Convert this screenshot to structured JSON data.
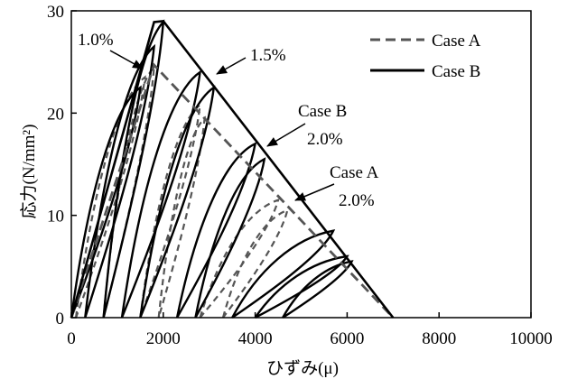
{
  "chart_data": {
    "type": "line",
    "title": "",
    "xlabel": "ひずみ(μ)",
    "ylabel": "応力(N/mm²)",
    "xlim": [
      0,
      10000
    ],
    "ylim": [
      0,
      30
    ],
    "xticks": [
      0,
      2000,
      4000,
      6000,
      8000,
      10000
    ],
    "yticks": [
      0,
      10,
      20,
      30
    ],
    "grid": false,
    "legend": {
      "position": "top-right",
      "entries": [
        "Case A",
        "Case B"
      ]
    },
    "colors": {
      "case_a": "#555555",
      "case_b": "#000000"
    },
    "series": [
      {
        "name": "Case A",
        "style": "dashed",
        "x": [
          0,
          1800,
          7000
        ],
        "y": [
          0,
          24.7,
          0
        ],
        "loops": [
          {
            "start_x": 100,
            "end_x": 1600,
            "peak_y": 23.5
          },
          {
            "start_x": 700,
            "end_x": 1800,
            "peak_y": 24.5
          },
          {
            "start_x": 1500,
            "end_x": 2800,
            "peak_y": 20.8
          },
          {
            "start_x": 1900,
            "end_x": 2900,
            "peak_y": 19.5
          },
          {
            "start_x": 2800,
            "end_x": 4500,
            "peak_y": 11.5
          },
          {
            "start_x": 3300,
            "end_x": 4700,
            "peak_y": 10.5
          }
        ]
      },
      {
        "name": "Case B",
        "style": "solid",
        "x": [
          0,
          1800,
          2000,
          7000
        ],
        "y": [
          0,
          28.9,
          29.0,
          0
        ],
        "loops": [
          {
            "start_x": 0,
            "end_x": 1500,
            "peak_y": 22.5
          },
          {
            "start_x": 300,
            "end_x": 1800,
            "peak_y": 26.5
          },
          {
            "start_x": 700,
            "end_x": 2000,
            "peak_y": 28.9
          },
          {
            "start_x": 1100,
            "end_x": 2800,
            "peak_y": 24.0
          },
          {
            "start_x": 1500,
            "end_x": 3100,
            "peak_y": 22.5
          },
          {
            "start_x": 2300,
            "end_x": 4000,
            "peak_y": 17.0
          },
          {
            "start_x": 2700,
            "end_x": 4200,
            "peak_y": 15.5
          },
          {
            "start_x": 3500,
            "end_x": 5700,
            "peak_y": 8.5
          },
          {
            "start_x": 4000,
            "end_x": 6000,
            "peak_y": 6.0
          },
          {
            "start_x": 4600,
            "end_x": 6100,
            "peak_y": 5.5
          }
        ]
      }
    ],
    "annotations": [
      {
        "lines": [
          "1.0%"
        ],
        "arrow_to": [
          1700,
          24.6
        ]
      },
      {
        "lines": [
          "1.5%"
        ],
        "arrow_to": [
          3000,
          22.2
        ]
      },
      {
        "lines": [
          "Case B",
          "2.0%"
        ],
        "arrow_to": [
          4100,
          16.3
        ]
      },
      {
        "lines": [
          "Case A",
          "2.0%"
        ],
        "arrow_to": [
          4600,
          11.7
        ]
      }
    ]
  }
}
